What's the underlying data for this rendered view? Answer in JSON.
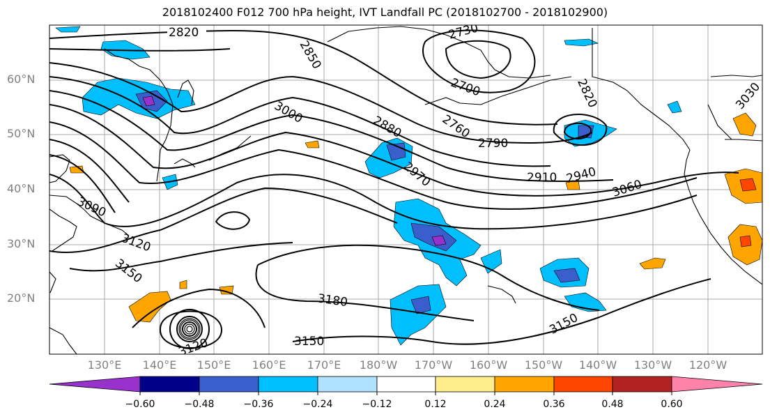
{
  "title": "2018102400 F012 700 hPa height, IVT Landfall PC (2018102700 - 2018102900)",
  "lat_labels": [
    "60°N",
    "50°N",
    "40°N",
    "30°N",
    "20°N"
  ],
  "lon_labels": [
    "130°E",
    "140°E",
    "150°E",
    "160°E",
    "170°E",
    "180°W",
    "170°W",
    "160°W",
    "150°W",
    "140°W",
    "130°W",
    "120°W"
  ],
  "contour_labels": [
    "2820",
    "2850",
    "2730",
    "2700",
    "3000",
    "2880",
    "2760",
    "2790",
    "2820",
    "3030",
    "2970",
    "2910",
    "2940",
    "3060",
    "3090",
    "3120",
    "3150",
    "3180",
    "3150",
    "3150",
    "3120"
  ],
  "colorbar": {
    "ticks": [
      "−0.60",
      "−0.48",
      "−0.36",
      "−0.24",
      "−0.12",
      "0.12",
      "0.24",
      "0.36",
      "0.48",
      "0.60"
    ],
    "colors": [
      "#9932CC",
      "#00008B",
      "#3A5FCD",
      "#00BFFF",
      "#B0E2FF",
      "#FFFFFF",
      "#FFEC8B",
      "#FFA500",
      "#FF4500",
      "#B22222",
      "#FF82AB"
    ]
  }
}
